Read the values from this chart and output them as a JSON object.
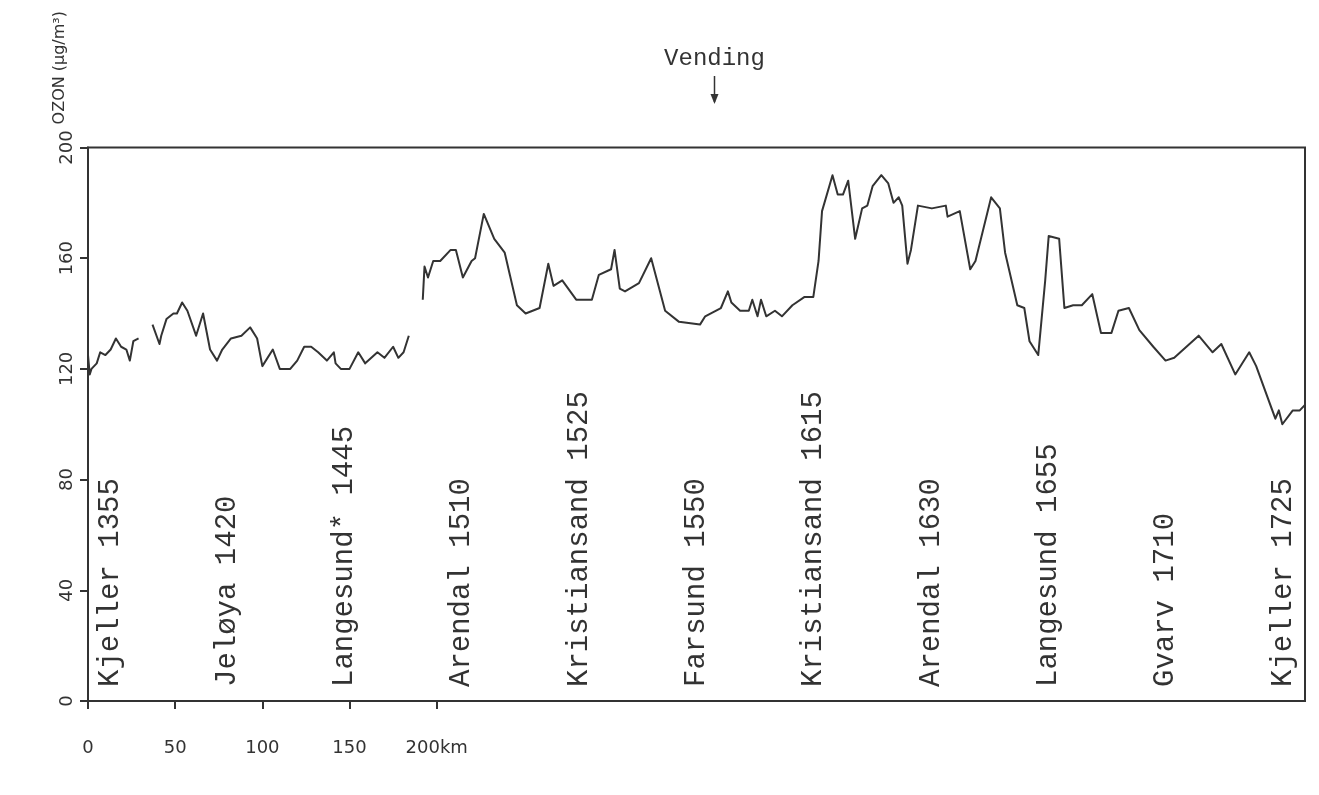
{
  "chart_data": {
    "type": "line",
    "ylabel": "OZON (µg/m³)",
    "x": [
      0,
      1,
      2,
      5,
      7,
      10,
      13,
      16,
      19,
      22,
      24,
      26,
      29,
      31,
      37,
      41,
      42,
      45,
      49,
      51,
      54,
      57,
      62,
      66,
      70,
      74,
      77,
      82,
      88,
      93,
      97,
      100,
      106,
      110,
      116,
      120,
      124,
      128,
      132,
      137,
      141,
      142,
      145,
      150,
      155,
      159,
      166,
      170,
      175,
      178,
      181,
      184,
      188,
      192,
      193,
      195,
      198,
      202,
      208,
      211,
      215,
      220,
      222,
      227,
      233,
      239,
      246,
      251,
      259,
      264,
      267,
      272,
      280,
      289,
      293,
      300,
      302,
      305,
      308,
      316,
      323,
      331,
      339,
      351,
      354,
      363,
      367,
      369,
      374,
      379,
      381,
      384,
      386,
      389,
      394,
      398,
      404,
      411,
      416,
      419,
      421,
      427,
      430,
      433,
      436,
      440,
      444,
      447,
      450,
      455,
      459,
      462,
      465,
      467,
      470,
      472,
      476,
      484,
      492,
      493,
      500,
      506,
      509,
      518,
      523,
      526,
      533,
      537,
      540,
      545,
      549,
      551,
      557,
      560,
      565,
      570,
      576,
      581,
      587,
      591,
      597,
      603,
      611,
      618,
      623,
      630,
      637,
      645,
      650,
      658,
      666,
      670,
      681,
      683,
      685,
      691,
      695,
      698
    ],
    "series": [
      {
        "color": "#333333",
        "values": [
          125,
          118,
          120,
          122,
          126,
          125,
          127,
          131,
          128,
          127,
          123,
          130,
          131,
          null,
          136,
          129,
          132,
          138,
          140,
          140,
          144,
          141,
          132,
          140,
          127,
          123,
          127,
          131,
          132,
          135,
          131,
          121,
          127,
          120,
          120,
          123,
          128,
          128,
          126,
          123,
          126,
          122,
          120,
          120,
          126,
          122,
          126,
          124,
          128,
          124,
          126,
          132,
          null,
          145,
          157,
          153,
          159,
          159,
          163,
          163,
          153,
          159,
          160,
          176,
          167,
          162,
          143,
          140,
          142,
          158,
          150,
          152,
          145,
          145,
          154,
          156,
          163,
          149,
          148,
          151,
          160,
          141,
          137,
          136,
          139,
          142,
          148,
          144,
          141,
          141,
          145,
          139,
          145,
          139,
          141,
          139,
          143,
          146,
          146,
          159,
          177,
          190,
          183,
          183,
          188,
          167,
          178,
          179,
          186,
          190,
          187,
          180,
          182,
          179,
          158,
          163,
          179,
          178,
          179,
          175,
          177,
          156,
          159,
          182,
          178,
          162,
          143,
          142,
          130,
          125,
          152,
          168,
          167,
          142,
          143,
          143,
          147,
          133,
          133,
          141,
          142,
          134,
          128,
          123,
          124,
          128,
          132,
          126,
          129,
          118,
          126,
          121,
          102,
          105,
          100,
          105,
          105,
          107
        ]
      }
    ],
    "xlim": [
      0,
      698
    ],
    "xticks": [
      0,
      50,
      100,
      150,
      {
        "value": 200,
        "label": "200km"
      }
    ],
    "ylim": [
      0,
      200
    ],
    "yticks": [
      0,
      40,
      80,
      120,
      160,
      200
    ],
    "grid": false,
    "marker": "none",
    "line_style": "solid",
    "annotations": [
      "Vending",
      "Kjeller 1355",
      "Jeløya 1420",
      "Langesund* 1445",
      "Arendal 1510",
      "Kristiansand 1525",
      "Farsund 1550",
      "Kristiansand 1615",
      "Arendal 1630",
      "Langesund 1655",
      "Gvarv 1710",
      "Kjeller 1725"
    ]
  }
}
